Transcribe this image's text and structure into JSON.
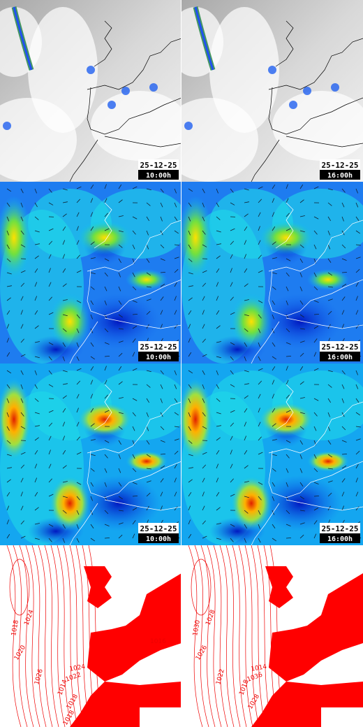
{
  "rows": [
    {
      "cells": [
        {
          "date": "25-12-25",
          "time": "10:00h"
        },
        {
          "date": "25-12-25",
          "time": "16:00h"
        }
      ]
    },
    {
      "cells": [
        {
          "date": "25-12-25",
          "time": "10:00h"
        },
        {
          "date": "25-12-25",
          "time": "16:00h"
        }
      ]
    },
    {
      "cells": [
        {
          "date": "25-12-25",
          "time": "10:00h"
        },
        {
          "date": "25-12-25",
          "time": "16:00h"
        }
      ]
    },
    {
      "cells": [
        {
          "isobars": [
            "1018",
            "1024",
            "1020",
            "1026",
            "1024",
            "1022",
            "1014",
            "1018",
            "1016",
            "1018"
          ]
        },
        {
          "isobars": [
            "1030",
            "1028",
            "1026",
            "1022",
            "1014",
            "1036",
            "1018",
            "1028"
          ]
        }
      ]
    }
  ]
}
